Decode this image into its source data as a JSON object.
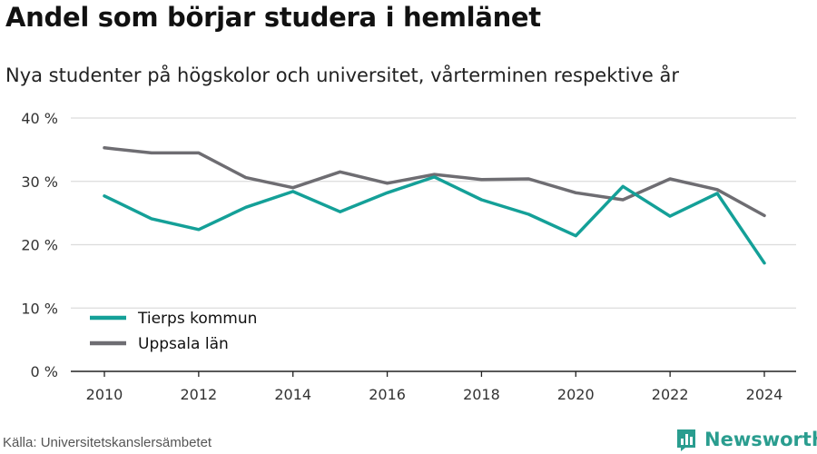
{
  "chart_data": {
    "type": "line",
    "title": "Andel som börjar studera i hemlänet",
    "subtitle": "Nya studenter på högskolor och universitet, vårterminen respektive år",
    "x": [
      2010,
      2011,
      2012,
      2013,
      2014,
      2015,
      2016,
      2017,
      2018,
      2019,
      2020,
      2021,
      2022,
      2023,
      2024
    ],
    "x_ticks": [
      2010,
      2012,
      2014,
      2016,
      2018,
      2020,
      2022,
      2024
    ],
    "y_ticks": [
      "0 %",
      "10 %",
      "20 %",
      "30 %",
      "40 %"
    ],
    "ylim": [
      0,
      40
    ],
    "grid": true,
    "legend_position": "bottom-left",
    "series": [
      {
        "name": "Tierps kommun",
        "color": "#14a098",
        "values": [
          27.7,
          24.1,
          22.4,
          25.9,
          28.4,
          25.2,
          28.2,
          30.7,
          27.1,
          24.8,
          21.4,
          29.2,
          24.5,
          28.1,
          17.1
        ]
      },
      {
        "name": "Uppsala län",
        "color": "#6e6d72",
        "values": [
          35.3,
          34.5,
          34.5,
          30.6,
          29.0,
          31.5,
          29.7,
          31.1,
          30.3,
          30.4,
          28.2,
          27.1,
          30.4,
          28.7,
          24.6
        ]
      }
    ]
  },
  "source": "Källa: Universitetskanslersämbetet",
  "brand": {
    "name": "Newsworthy",
    "logo_icon": "bar-chart-logo-icon",
    "color": "#2a9d8f"
  }
}
